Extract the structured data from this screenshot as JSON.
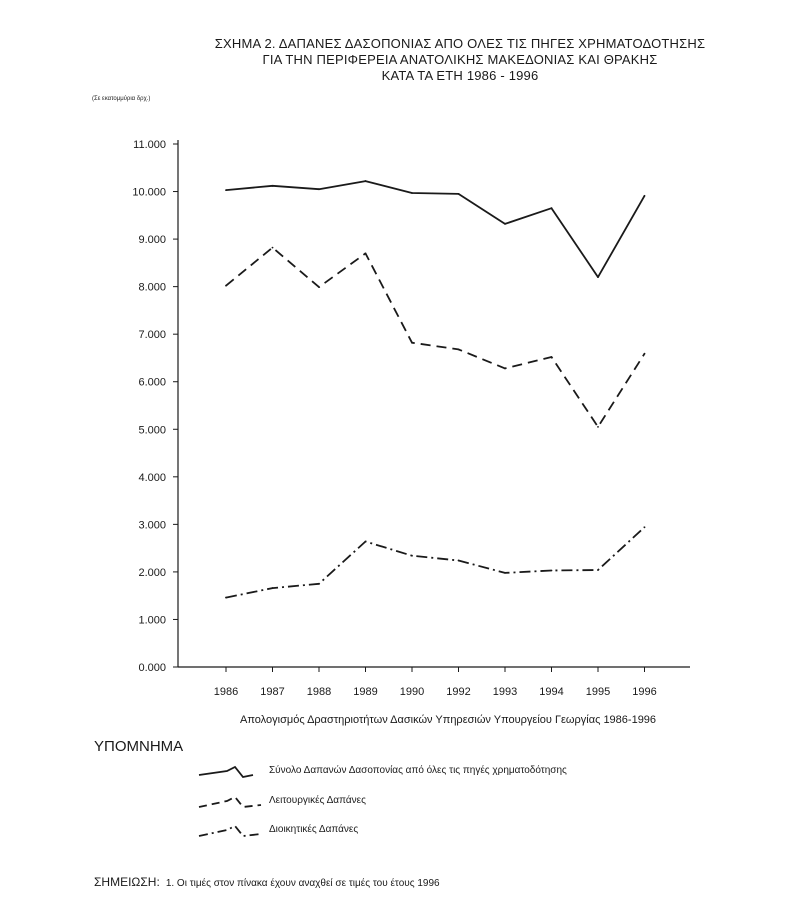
{
  "title": {
    "line1": "ΣΧΗΜΑ 2. ΔΑΠΑΝΕΣ ΔΑΣΟΠΟΝΙΑΣ ΑΠΟ ΟΛΕΣ ΤΙΣ ΠΗΓΕΣ ΧΡΗΜΑΤΟΔΟΤΗΣΗΣ",
    "line2": "ΓΙΑ ΤΗΝ ΠΕΡΙΦΕΡΕΙΑ ΑΝΑΤΟΛΙΚΗΣ ΜΑΚΕΔΟΝΙΑΣ ΚΑΙ ΘΡΑΚΗΣ",
    "line3": "ΚΑΤΑ ΤΑ ΕΤΗ 1986 - 1996"
  },
  "unit_label": "(Σε εκατομμύρια δρχ.)",
  "source": "Απολογισμός Δραστηριοτήτων Δασικών Υπηρεσιών Υπουργείου Γεωργίας 1986-1996",
  "legend": {
    "title": "ΥΠΟΜΝΗΜΑ",
    "items": [
      "Σύνολο Δαπανών Δασοπονίας από όλες τις πηγές χρηματοδότησης",
      "Λειτουργικές Δαπάνες",
      "Διοικητικές Δαπάνες"
    ]
  },
  "note": {
    "label": "ΣΗΜΕΙΩΣΗ:",
    "text": "1.  Οι τιμές στον πίνακα έχουν αναχθεί σε τιμές του έτους 1996"
  },
  "chart_data": {
    "type": "line",
    "categories": [
      "1986",
      "1987",
      "1988",
      "1989",
      "1990",
      "1992",
      "1993",
      "1994",
      "1995",
      "1996"
    ],
    "y_tick_labels": [
      "0.000",
      "1.000",
      "2.000",
      "3.000",
      "4.000",
      "5.000",
      "6.000",
      "7.000",
      "8.000",
      "9.000",
      "10.000",
      "11.000"
    ],
    "ylim": [
      0,
      11000
    ],
    "grid": false,
    "series": [
      {
        "name": "Σύνολο Δαπανών Δασοπονίας από όλες τις πηγές χρηματοδότησης",
        "style": "solid",
        "values": [
          10030,
          10120,
          10050,
          10220,
          9970,
          9950,
          9320,
          9650,
          8200,
          9910
        ]
      },
      {
        "name": "Λειτουργικές Δαπάνες",
        "style": "dashed",
        "values": [
          8020,
          8820,
          7990,
          8700,
          6820,
          6680,
          6280,
          6520,
          5050,
          6590
        ]
      },
      {
        "name": "Διοικητικές Δαπάνες",
        "style": "dash-dot",
        "values": [
          1460,
          1660,
          1750,
          2640,
          2340,
          2240,
          1980,
          2030,
          2040,
          2940
        ]
      }
    ]
  }
}
